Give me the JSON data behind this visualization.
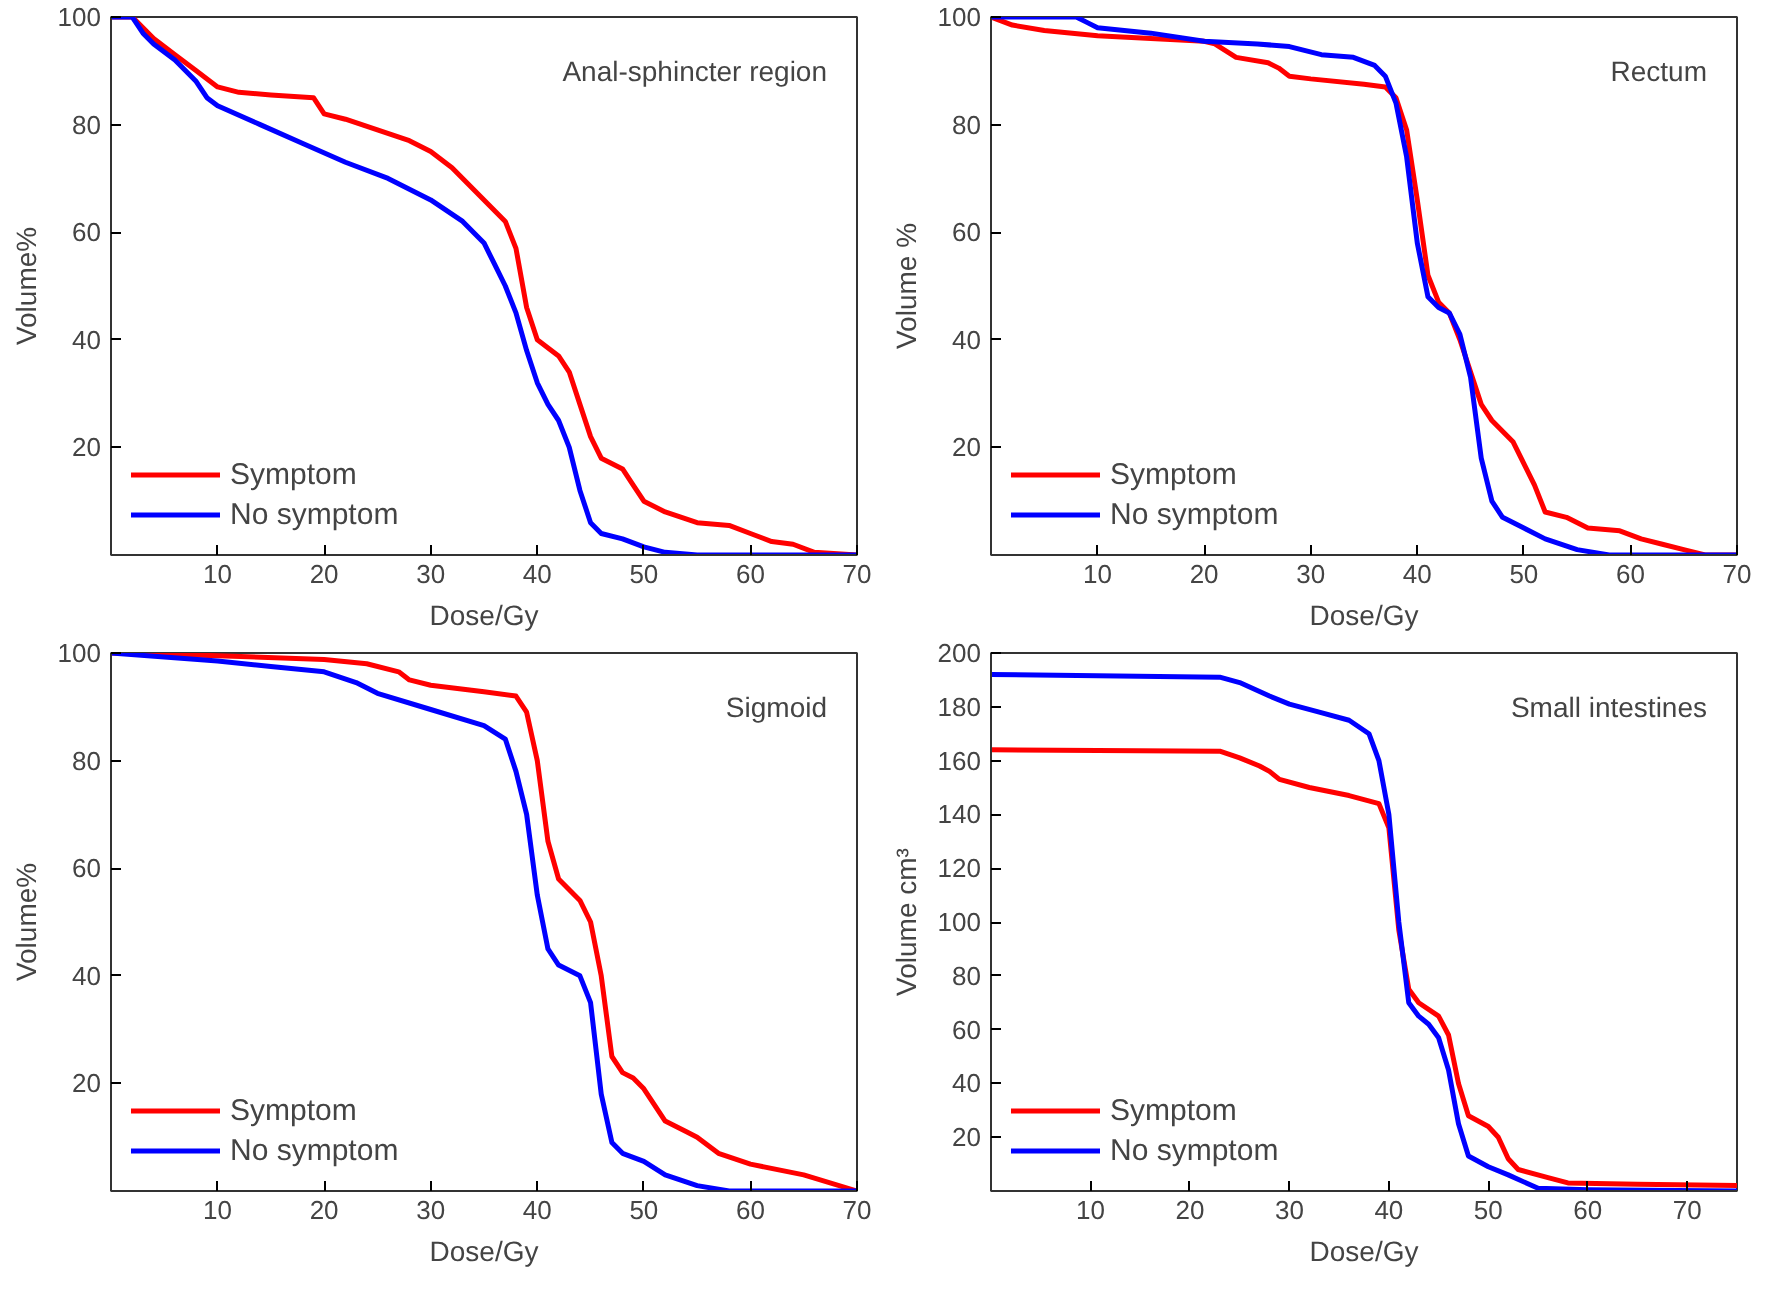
{
  "chart_data": [
    {
      "type": "line",
      "title": "Anal-sphincter region",
      "xlabel": "Dose/Gy",
      "ylabel": "Volume%",
      "xlim": [
        0,
        70
      ],
      "ylim": [
        0,
        100
      ],
      "xticks": [
        10,
        20,
        30,
        40,
        50,
        60,
        70
      ],
      "yticks": [
        20,
        40,
        60,
        80,
        100
      ],
      "grid": false,
      "legend": "bottom left",
      "series": [
        {
          "name": "Symptom",
          "color": "#ff0000",
          "x": [
            0,
            2,
            3,
            4,
            6,
            8,
            10,
            12,
            15,
            19,
            20,
            22,
            25,
            28,
            30,
            32,
            34,
            36,
            37,
            38,
            39,
            40,
            42,
            43,
            44,
            45,
            46,
            48,
            49,
            50,
            52,
            55,
            58,
            60,
            62,
            64,
            66,
            70
          ],
          "values": [
            100,
            100,
            98,
            96,
            93,
            90,
            87,
            86,
            85.5,
            85,
            82,
            81,
            79,
            77,
            75,
            72,
            68,
            64,
            62,
            57,
            46,
            40,
            37,
            34,
            28,
            22,
            18,
            16,
            13,
            10,
            8,
            6,
            5.5,
            4,
            2.5,
            2,
            0.5,
            0
          ]
        },
        {
          "name": "No symptom",
          "color": "#0000ff",
          "x": [
            0,
            2,
            3,
            4,
            6,
            8,
            9,
            10,
            14,
            18,
            22,
            26,
            30,
            33,
            35,
            36,
            37,
            38,
            39,
            40,
            41,
            42,
            43,
            44,
            45,
            46,
            48,
            50,
            52,
            55,
            70
          ],
          "values": [
            100,
            100,
            97,
            95,
            92,
            88,
            85,
            83.5,
            80,
            76.5,
            73,
            70,
            66,
            62,
            58,
            54,
            50,
            45,
            38,
            32,
            28,
            25,
            20,
            12,
            6,
            4,
            3,
            1.5,
            0.5,
            0,
            0
          ]
        }
      ]
    },
    {
      "type": "line",
      "title": "Rectum",
      "xlabel": "Dose/Gy",
      "ylabel": "Volume %",
      "xlim": [
        0,
        70
      ],
      "ylim": [
        0,
        100
      ],
      "xticks": [
        10,
        20,
        30,
        40,
        50,
        60,
        70
      ],
      "yticks": [
        20,
        40,
        60,
        80,
        100
      ],
      "grid": false,
      "legend": "bottom left",
      "series": [
        {
          "name": "Symptom",
          "color": "#ff0000",
          "x": [
            0,
            2,
            5,
            10,
            20,
            21,
            23,
            26,
            27,
            28,
            30,
            35,
            37,
            38,
            39,
            40,
            41,
            42,
            43,
            44,
            45,
            46,
            47,
            49,
            50,
            51,
            52,
            54,
            56,
            59,
            61,
            63,
            65,
            67,
            70
          ],
          "values": [
            100,
            98.5,
            97.5,
            96.5,
            95.5,
            95,
            92.5,
            91.5,
            90.5,
            89,
            88.5,
            87.5,
            87,
            85,
            79,
            66,
            52,
            47,
            45,
            40,
            34,
            28,
            25,
            21,
            17,
            13,
            8,
            7,
            5,
            4.5,
            3,
            2,
            1,
            0,
            0
          ]
        },
        {
          "name": "No symptom",
          "color": "#0000ff",
          "x": [
            0,
            8,
            9,
            10,
            15,
            20,
            25,
            28,
            31,
            34,
            36,
            37,
            38,
            39,
            40,
            41,
            42,
            43,
            44,
            45,
            46,
            47,
            48,
            50,
            52,
            55,
            58,
            70
          ],
          "values": [
            100,
            100,
            99,
            98,
            97,
            95.5,
            95,
            94.5,
            93,
            92.5,
            91,
            89,
            84,
            74,
            58,
            48,
            46,
            45,
            41,
            33,
            18,
            10,
            7,
            5,
            3,
            1,
            0,
            0
          ]
        }
      ]
    },
    {
      "type": "line",
      "title": "Sigmoid",
      "xlabel": "Dose/Gy",
      "ylabel": "Volume%",
      "xlim": [
        0,
        70
      ],
      "ylim": [
        0,
        100
      ],
      "xticks": [
        10,
        20,
        30,
        40,
        50,
        60,
        70
      ],
      "yticks": [
        20,
        40,
        60,
        80,
        100
      ],
      "grid": false,
      "legend": "bottom left",
      "series": [
        {
          "name": "Symptom",
          "color": "#ff0000",
          "x": [
            0,
            10,
            20,
            24,
            27,
            28,
            30,
            35,
            38,
            39,
            40,
            41,
            42,
            44,
            45,
            46,
            47,
            48,
            49,
            50,
            52,
            54,
            55,
            57,
            60,
            65,
            70
          ],
          "values": [
            100,
            99.5,
            98.8,
            98,
            96.5,
            95,
            94,
            92.8,
            92,
            89,
            80,
            65,
            58,
            54,
            50,
            40,
            25,
            22,
            21,
            19,
            13,
            11,
            10,
            7,
            5,
            3,
            0
          ]
        },
        {
          "name": "No symptom",
          "color": "#0000ff",
          "x": [
            0,
            10,
            15,
            20,
            23,
            25,
            30,
            35,
            37,
            38,
            39,
            40,
            41,
            42,
            44,
            45,
            46,
            47,
            48,
            50,
            52,
            55,
            58,
            70
          ],
          "values": [
            100,
            98.5,
            97.5,
            96.5,
            94.5,
            92.5,
            89.5,
            86.5,
            84,
            78,
            70,
            55,
            45,
            42,
            40,
            35,
            18,
            9,
            7,
            5.5,
            3,
            1,
            0,
            0
          ]
        }
      ]
    },
    {
      "type": "line",
      "title": "Small intestines",
      "xlabel": "Dose/Gy",
      "ylabel": "Volume cm³",
      "xlim": [
        0,
        75
      ],
      "ylim": [
        0,
        200
      ],
      "xticks": [
        10,
        20,
        30,
        40,
        50,
        60,
        70
      ],
      "yticks": [
        20,
        40,
        60,
        80,
        100,
        120,
        140,
        160,
        180,
        200
      ],
      "grid": false,
      "legend": "bottom left",
      "series": [
        {
          "name": "Symptom",
          "color": "#ff0000",
          "x": [
            0,
            23,
            25,
            27,
            28,
            29,
            32,
            36,
            39,
            40,
            41,
            42,
            43,
            45,
            46,
            47,
            48,
            50,
            51,
            52,
            53,
            56,
            58,
            65,
            75
          ],
          "values": [
            164,
            163.5,
            161,
            158,
            156,
            153,
            150,
            147,
            144,
            135,
            97,
            75,
            70,
            65,
            58,
            40,
            28,
            24,
            20,
            12,
            8,
            5,
            3,
            2.5,
            2
          ]
        },
        {
          "name": "No symptom",
          "color": "#0000ff",
          "x": [
            0,
            23,
            25,
            28,
            30,
            33,
            36,
            38,
            39,
            40,
            41,
            42,
            43,
            44,
            45,
            46,
            47,
            48,
            50,
            52,
            55,
            60,
            75
          ],
          "values": [
            192,
            191,
            189,
            184,
            181,
            178,
            175,
            170,
            160,
            140,
            100,
            70,
            65,
            62,
            57,
            45,
            25,
            13,
            9,
            6,
            1,
            0.5,
            0
          ]
        }
      ]
    }
  ]
}
